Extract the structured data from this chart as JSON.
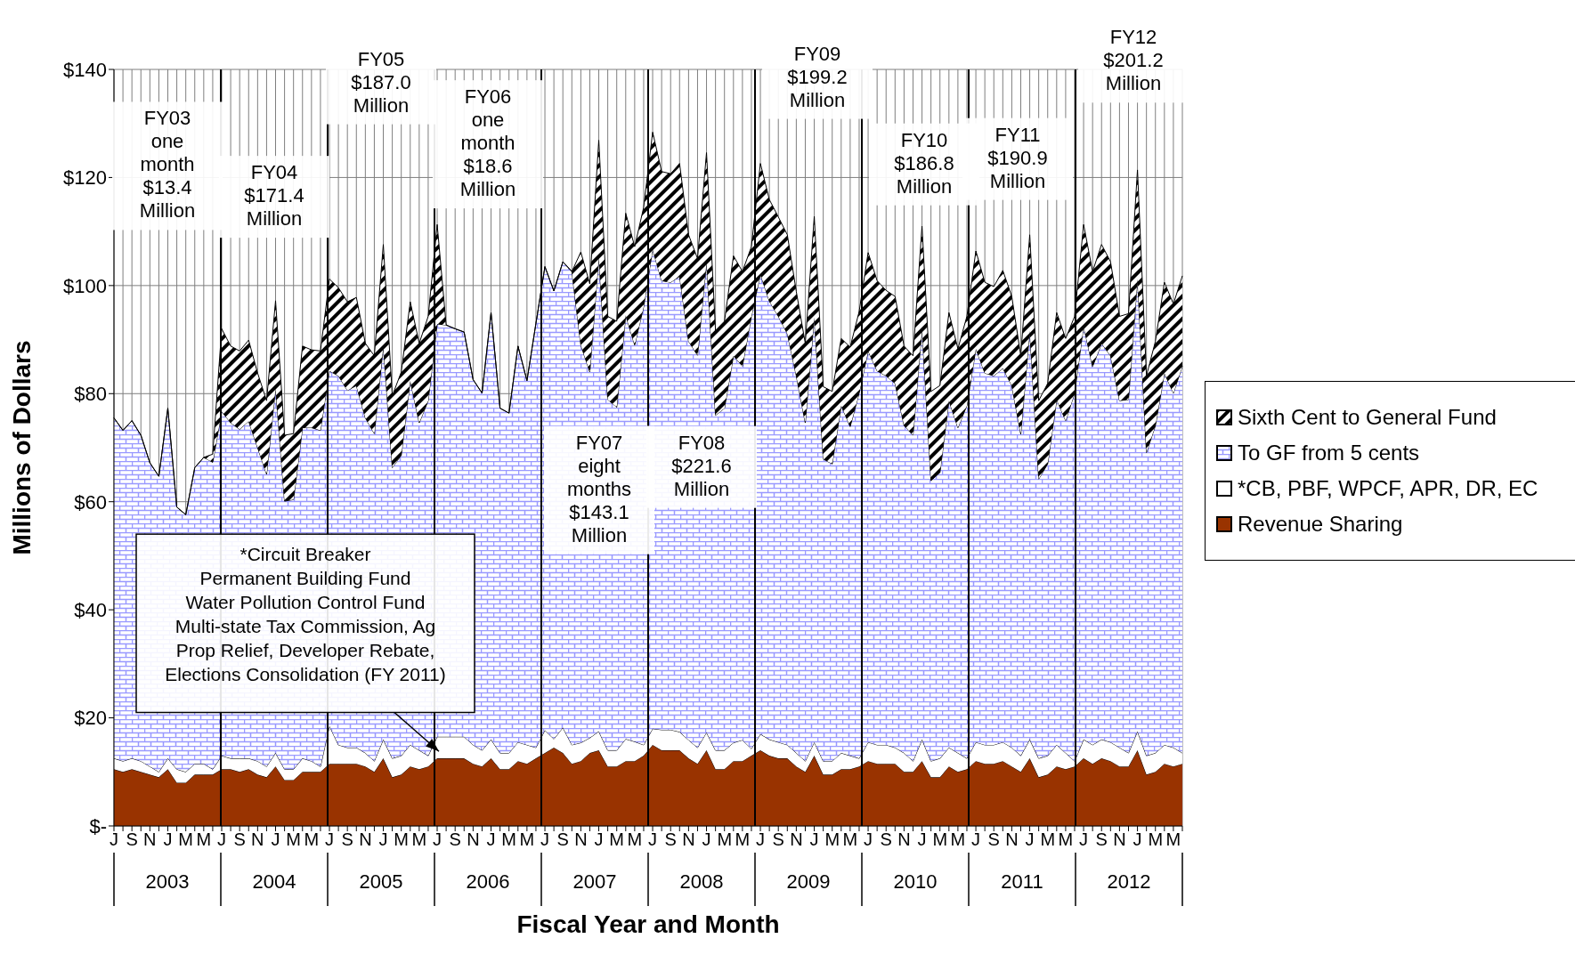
{
  "chart_data": {
    "type": "area",
    "stacked": true,
    "xlabel": "Fiscal Year and Month",
    "ylabel": "Millions of Dollars",
    "categories": [
      "J",
      null,
      "S",
      null,
      "N",
      null,
      "J",
      null,
      "M",
      null,
      "M",
      null,
      "J",
      null,
      "S",
      null,
      "N",
      null,
      "J",
      null,
      "M",
      null,
      "M",
      null,
      "J",
      null,
      "S",
      null,
      "N",
      null,
      "J",
      null,
      "M",
      null,
      "M",
      null,
      "J",
      null,
      "S",
      null,
      "N",
      null,
      "J",
      null,
      "M",
      null,
      "M",
      null,
      "J",
      null,
      "S",
      null,
      "N",
      null,
      "J",
      null,
      "M",
      null,
      "M",
      null,
      "J",
      null,
      "S",
      null,
      "N",
      null,
      "J",
      null,
      "M",
      null,
      "M",
      null,
      "J",
      null,
      "S",
      null,
      "N",
      null,
      "J",
      null,
      "M",
      null,
      "M",
      null,
      "J",
      null,
      "S",
      null,
      "N",
      null,
      "J",
      null,
      "M",
      null,
      "M",
      null,
      "J",
      null,
      "S",
      null,
      "N",
      null,
      "J",
      null,
      "M",
      null,
      "M",
      null,
      "J",
      null,
      "S",
      null,
      "N",
      null,
      "J",
      null,
      "M",
      null,
      "M",
      null
    ],
    "series": [
      {
        "name": "Revenue Sharing",
        "color": "#993300",
        "values": [
          10.5,
          10,
          10.5,
          10,
          9.5,
          9,
          10.5,
          8,
          8,
          9.5,
          9.5,
          9.5,
          10.5,
          10.5,
          10,
          10.5,
          9.5,
          9,
          11,
          8.5,
          8.5,
          10,
          10,
          10,
          11.5,
          11.5,
          11.5,
          11.5,
          11,
          10,
          12.5,
          9,
          9.5,
          11,
          10.5,
          11,
          12.5,
          12.5,
          12.5,
          12.5,
          11.5,
          11,
          12.5,
          10.5,
          10.5,
          12,
          11.5,
          12.5,
          13.5,
          14.5,
          13.5,
          11.5,
          12,
          13.5,
          14,
          11,
          11,
          12,
          12,
          13,
          15,
          14,
          14,
          14,
          12.5,
          11.5,
          14,
          10.5,
          10.5,
          12,
          12,
          13,
          14,
          13,
          12.5,
          12.5,
          11,
          10,
          13,
          9.5,
          9.5,
          10.5,
          10.5,
          11,
          12,
          11.5,
          11.5,
          11.5,
          10,
          10,
          12,
          9,
          9,
          11,
          10,
          10.5,
          12,
          11.5,
          11.5,
          12,
          11,
          10,
          12.5,
          9,
          9.5,
          11,
          10.5,
          11,
          12.5,
          11.5,
          12.5,
          12,
          11,
          11,
          14,
          9.5,
          10,
          11.5,
          11,
          11.5
        ]
      },
      {
        "name": "*CB, PBF, WPCF, APR, DR, EC",
        "color": "#ffffff",
        "values": [
          2,
          2,
          2,
          2,
          1.5,
          1,
          2,
          2.5,
          2,
          2,
          2,
          1,
          2.5,
          2,
          2.5,
          2,
          2.5,
          2,
          2.5,
          2,
          2,
          2.5,
          2,
          1,
          7,
          3.5,
          3,
          3,
          2.5,
          2,
          3.5,
          3.5,
          3.5,
          4,
          3.5,
          2,
          4,
          4,
          4,
          4,
          3.5,
          3,
          3.5,
          3,
          3,
          3.5,
          3.5,
          2,
          4.2,
          1.6,
          4.7,
          3.5,
          3.4,
          2.8,
          3.5,
          3,
          3,
          4.1,
          3.6,
          2,
          3,
          3.8,
          3.8,
          3.4,
          3.4,
          3,
          3.3,
          3.5,
          3.5,
          3.4,
          3.9,
          1.3,
          3,
          3,
          3,
          2.5,
          2.5,
          2,
          2.5,
          2.5,
          2.5,
          3,
          2.5,
          1.5,
          3.5,
          3.5,
          3.5,
          3,
          3.5,
          2,
          4,
          3,
          3.5,
          3.5,
          3.5,
          2,
          3.5,
          3.5,
          3.5,
          3.5,
          3.5,
          3,
          3.5,
          3.5,
          3.5,
          4,
          3,
          1,
          3.5,
          3.5,
          3.5,
          3.5,
          3.5,
          2.5,
          3.5,
          3.5,
          3.5,
          3.5,
          3.5,
          2
        ]
      },
      {
        "name": "To GF from 5 cents",
        "color": "#9999ff",
        "values": [
          63,
          61.2,
          62.5,
          60.3,
          56.2,
          54.7,
          64.8,
          48.5,
          47.6,
          54.8,
          56.7,
          56.8,
          63.7,
          62.1,
          60.9,
          62.4,
          58,
          54.1,
          67.5,
          49.6,
          49.9,
          61.2,
          61.7,
          62.2,
          65.7,
          68.3,
          66.1,
          67,
          62,
          60.6,
          72.8,
          53.8,
          55.6,
          67.4,
          60.6,
          65.7,
          76.4,
          76.2,
          75.5,
          74.9,
          67.6,
          66.1,
          79,
          63.8,
          62.9,
          73.3,
          67.4,
          78.5,
          85.8,
          82.9,
          86.2,
          87.6,
          73.6,
          67.7,
          87.8,
          64.9,
          63.5,
          78.4,
          73.4,
          81.1,
          88.7,
          83.1,
          82.8,
          84.3,
          73.8,
          72.6,
          87.1,
          62,
          63.3,
          71.6,
          69.2,
          80,
          85.1,
          81.1,
          78.8,
          76.1,
          69.8,
          62.6,
          78.6,
          55.9,
          55,
          64.3,
          60.9,
          67.6,
          72.4,
          69.2,
          68.3,
          67.4,
          60.6,
          60.3,
          76,
          51.9,
          52.9,
          64.2,
          60.2,
          65.3,
          72.8,
          68.8,
          68.3,
          69.2,
          67,
          59.5,
          75.6,
          51.7,
          54,
          63.9,
          61.5,
          68.1,
          76.5,
          70,
          73.3,
          71.5,
          64.2,
          65.4,
          83.7,
          56.1,
          60.6,
          68.8,
          65.6,
          71.6
        ]
      },
      {
        "name": "Sixth Cent to General Fund",
        "color": "#000000",
        "values": [
          0,
          0,
          0,
          0,
          0,
          0,
          0,
          0,
          0,
          0,
          0,
          1.5,
          15.3,
          14.2,
          14.5,
          15,
          13.8,
          13.6,
          16.2,
          12.2,
          12.2,
          15.1,
          14.4,
          14.7,
          17,
          16.3,
          16.4,
          16.3,
          13.8,
          14.4,
          18.8,
          13.3,
          15.4,
          14.6,
          14.7,
          15.6,
          18.4,
          0,
          0,
          0,
          0,
          0,
          0,
          0,
          0,
          0,
          0,
          0,
          0,
          0,
          0,
          0,
          17.2,
          16.3,
          21.6,
          15.4,
          15.9,
          18.9,
          18.2,
          18.4,
          21.7,
          20.2,
          20.1,
          20.9,
          19.7,
          17.9,
          20.2,
          15.7,
          16.1,
          18.5,
          17.5,
          12.9,
          20.5,
          18.8,
          18.4,
          18.3,
          15.6,
          14.7,
          18.7,
          13.4,
          13.4,
          12.4,
          14.7,
          15.1,
          18.2,
          16.7,
          15.8,
          16.1,
          14.7,
          14.7,
          19,
          16.5,
          16.1,
          16.3,
          14.6,
          16.5,
          18.1,
          16.8,
          16.5,
          18.1,
          16.5,
          14.5,
          17.8,
          14.5,
          14.9,
          16.1,
          15.2,
          14.2,
          18.8,
          17.6,
          18.3,
          17.4,
          15.6,
          15.9,
          20.2,
          14.2,
          15.6,
          16.8,
          16.5,
          16.7
        ]
      }
    ],
    "ylim": [
      0,
      140
    ],
    "yticks": [
      {
        "value": 0,
        "label": "$-"
      },
      {
        "value": 20,
        "label": "$20"
      },
      {
        "value": 40,
        "label": "$40"
      },
      {
        "value": 60,
        "label": "$60"
      },
      {
        "value": 80,
        "label": "$80"
      },
      {
        "value": 100,
        "label": "$100"
      },
      {
        "value": 120,
        "label": "$120"
      },
      {
        "value": 140,
        "label": "$140"
      }
    ],
    "grid": true,
    "legend": "right",
    "annotations": [
      "2003",
      "2004",
      "2005",
      "2006",
      "2007",
      "2008",
      "2009",
      "2010",
      "2011",
      "2012",
      "FY03\none\nmonth\n$13.4\nMillion",
      "FY04\n$171.4\nMillion",
      "FY05\n$187.0\nMillion",
      "FY06\none\nmonth\n$18.6\nMillion",
      "FY07\neight\nmonths\n$143.1\nMillion",
      "FY08\n$221.6\nMillion",
      "FY09\n$199.2\nMillion",
      "FY10\n$186.8\nMillion",
      "FY11\n$190.9\nMillion",
      "FY12\n$201.2\nMillion",
      "*Circuit Breaker\nPermanent Building Fund\nWater Pollution Control Fund\nMulti-state Tax Commission, Ag\nProp Relief, Developer Rebate,\nElections Consolidation (FY 2011)"
    ]
  }
}
